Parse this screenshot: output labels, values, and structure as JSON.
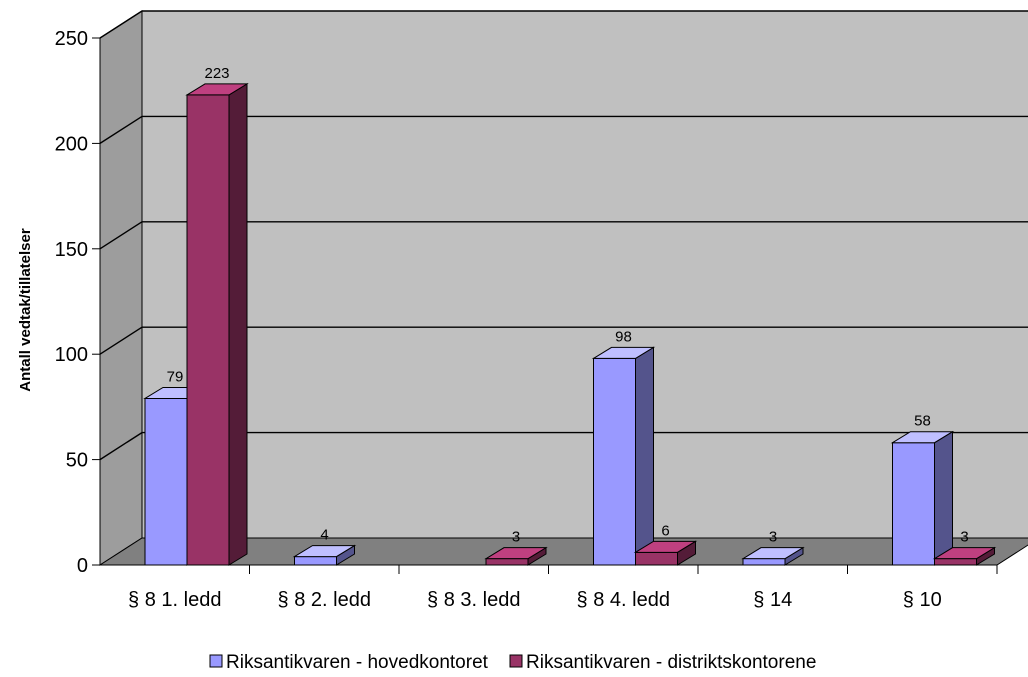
{
  "chart_data": {
    "type": "bar",
    "title": "",
    "xlabel": "",
    "ylabel": "Antall vedtak/tillatelser",
    "ylim": [
      0,
      250
    ],
    "yticks": [
      0,
      50,
      100,
      150,
      200,
      250
    ],
    "grid": true,
    "legend_position": "bottom",
    "categories": [
      "§ 8  1. ledd",
      "§ 8  2. ledd",
      "§ 8  3. ledd",
      "§ 8  4. ledd",
      "§ 14",
      "§ 10"
    ],
    "series": [
      {
        "name": "Riksantikvaren - hovedkontoret",
        "values": [
          79,
          4,
          null,
          98,
          3,
          58
        ],
        "labels": [
          "79",
          "4",
          "",
          "98",
          "3",
          "58"
        ],
        "color": "#9999ff"
      },
      {
        "name": "Riksantikvaren - distriktskontorene",
        "values": [
          223,
          null,
          3,
          6,
          null,
          3
        ],
        "labels": [
          "223",
          "",
          "3",
          "6",
          "",
          "3"
        ],
        "color": "#993366"
      }
    ],
    "colors": {
      "wall": "#c0c0c0",
      "floor": "#808080",
      "gridline": "#000000"
    }
  }
}
